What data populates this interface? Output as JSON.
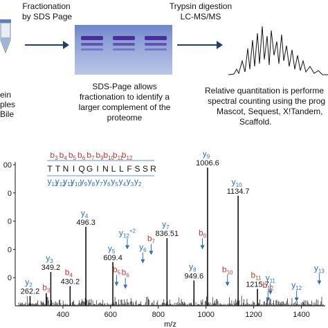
{
  "workflow": {
    "step1": {
      "line1": "Fractionation",
      "line2": "by SDS Page"
    },
    "step2": {
      "line1": "Trypsin digestion",
      "line2": "LC-MS/MS"
    },
    "left_text": {
      "line1": "ein",
      "line2": "ples",
      "line3": "Bile"
    },
    "gel_caption": {
      "line1": "SDS-Page allows",
      "line2": "fractionation to identify a",
      "line3": "larger complement of the",
      "line4": "proteome"
    },
    "quant_caption": {
      "line1": "Relative quantitation is performe",
      "line2": "spectral counting using the prog",
      "line3": "Mascot, Sequest, X!Tandem,",
      "line4": "Scaffold."
    }
  },
  "peptide": {
    "sequence": [
      "T",
      "T",
      "N",
      "I",
      "Q",
      "G",
      "I",
      "N",
      "L",
      "L",
      "F",
      "S",
      "S",
      "R"
    ],
    "b_labels": [
      "b3",
      "b4",
      "b5",
      "b6",
      "b7",
      "b9",
      "b10",
      "b11",
      "b12"
    ],
    "y_labels": [
      "y13",
      "y12",
      "y11",
      "y10",
      "y9",
      "y8",
      "y7",
      "y6",
      "y5",
      "y4",
      "y3",
      "y2"
    ],
    "colors": {
      "b_ion": "#c0393b",
      "y_ion": "#2f6fb7",
      "spectrum": "#111111"
    }
  },
  "chart_data": {
    "type": "bar",
    "xlabel": "m/z",
    "ylabel": "",
    "xlim": [
      200,
      1500
    ],
    "ylim": [
      0,
      1.0
    ],
    "x_ticks": [
      "400",
      "600",
      "800",
      "1000",
      "1200",
      "1400"
    ],
    "y_ticks": [
      "00",
      "0",
      "0",
      "0",
      "0"
    ],
    "peaks": [
      {
        "mz": 262.2,
        "intensity": 0.07,
        "label": "262.2",
        "ion": "y2"
      },
      {
        "mz": 330,
        "intensity": 0.09,
        "label": "",
        "ion": "b3"
      },
      {
        "mz": 349.2,
        "intensity": 0.24,
        "label": "349.2",
        "ion": "y3"
      },
      {
        "mz": 430.2,
        "intensity": 0.14,
        "label": "430.2",
        "ion": "b4"
      },
      {
        "mz": 496.3,
        "intensity": 0.56,
        "label": "496.3",
        "ion": "y4"
      },
      {
        "mz": 609.4,
        "intensity": 0.31,
        "label": "609.4",
        "ion": "y5"
      },
      {
        "mz": 836.51,
        "intensity": 0.48,
        "label": "836.51",
        "ion": "y7"
      },
      {
        "mz": 949.6,
        "intensity": 0.18,
        "label": "949.6",
        "ion": "y8"
      },
      {
        "mz": 1006.6,
        "intensity": 0.98,
        "label": "1006.6",
        "ion": "y9"
      },
      {
        "mz": 1134.7,
        "intensity": 0.78,
        "label": "1134.7",
        "ion": "y10"
      },
      {
        "mz": 1215.7,
        "intensity": 0.12,
        "label": "1215.7",
        "ion": "b11"
      }
    ],
    "ion_labels": [
      {
        "label": "b5",
        "ion": "b5",
        "mz": 625,
        "level": 0.14
      },
      {
        "label": "b6",
        "ion": "b6",
        "mz": 662,
        "level": 0.12
      },
      {
        "label": "y6",
        "ion": "y6",
        "mz": 735,
        "level": 0.3
      },
      {
        "label": "b7",
        "ion": "b7",
        "mz": 770,
        "level": 0.36
      },
      {
        "label": "y12+2",
        "ion": "y12",
        "mz": 670,
        "level": 0.4
      },
      {
        "label": "b9",
        "ion": "b9",
        "mz": 985,
        "level": 0.4
      },
      {
        "label": "b10",
        "ion": "b10",
        "mz": 1090,
        "level": 0.14
      },
      {
        "label": "y11",
        "ion": "y11",
        "mz": 1270,
        "level": 0.08
      },
      {
        "label": "b12",
        "ion": "b12",
        "mz": 1260,
        "level": 0.03
      },
      {
        "label": "y12",
        "ion": "y12",
        "mz": 1380,
        "level": 0.03
      },
      {
        "label": "y13",
        "ion": "y13",
        "mz": 1475,
        "level": 0.15
      }
    ]
  }
}
